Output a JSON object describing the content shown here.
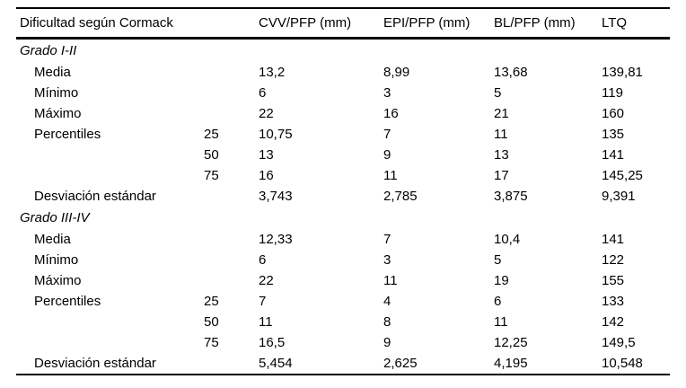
{
  "table": {
    "header": {
      "difficulty": "Dificultad según Cormack",
      "cvv": "CVV/PFP (mm)",
      "epi": "EPI/PFP (mm)",
      "bl": "BL/PFP (mm)",
      "ltq": "LTQ"
    },
    "sections": [
      {
        "title": "Grado I-II",
        "rows": [
          {
            "label": "Media",
            "sub": "",
            "values": [
              "13,2",
              "8,99",
              "13,68",
              "139,81"
            ]
          },
          {
            "label": "Mínimo",
            "sub": "",
            "values": [
              "6",
              "3",
              "5",
              "119"
            ]
          },
          {
            "label": "Máximo",
            "sub": "",
            "values": [
              "22",
              "16",
              "21",
              "160"
            ]
          },
          {
            "label": "Percentiles",
            "sub": "25",
            "values": [
              "10,75",
              "7",
              "11",
              "135"
            ]
          },
          {
            "label": "",
            "sub": "50",
            "values": [
              "13",
              "9",
              "13",
              "141"
            ]
          },
          {
            "label": "",
            "sub": "75",
            "values": [
              "16",
              "11",
              "17",
              "145,25"
            ]
          },
          {
            "label": "Desviación estándar",
            "sub": "",
            "values": [
              "3,743",
              "2,785",
              "3,875",
              "9,391"
            ]
          }
        ]
      },
      {
        "title": "Grado III-IV",
        "rows": [
          {
            "label": "Media",
            "sub": "",
            "values": [
              "12,33",
              "7",
              "10,4",
              "141"
            ]
          },
          {
            "label": "Mínimo",
            "sub": "",
            "values": [
              "6",
              "3",
              "5",
              "122"
            ]
          },
          {
            "label": "Máximo",
            "sub": "",
            "values": [
              "22",
              "11",
              "19",
              "155"
            ]
          },
          {
            "label": "Percentiles",
            "sub": "25",
            "values": [
              "7",
              "4",
              "6",
              "133"
            ]
          },
          {
            "label": "",
            "sub": "50",
            "values": [
              "11",
              "8",
              "11",
              "142"
            ]
          },
          {
            "label": "",
            "sub": "75",
            "values": [
              "16,5",
              "9",
              "12,25",
              "149,5"
            ]
          },
          {
            "label": "Desviación estándar",
            "sub": "",
            "values": [
              "5,454",
              "2,625",
              "4,195",
              "10,548"
            ]
          }
        ]
      }
    ]
  }
}
